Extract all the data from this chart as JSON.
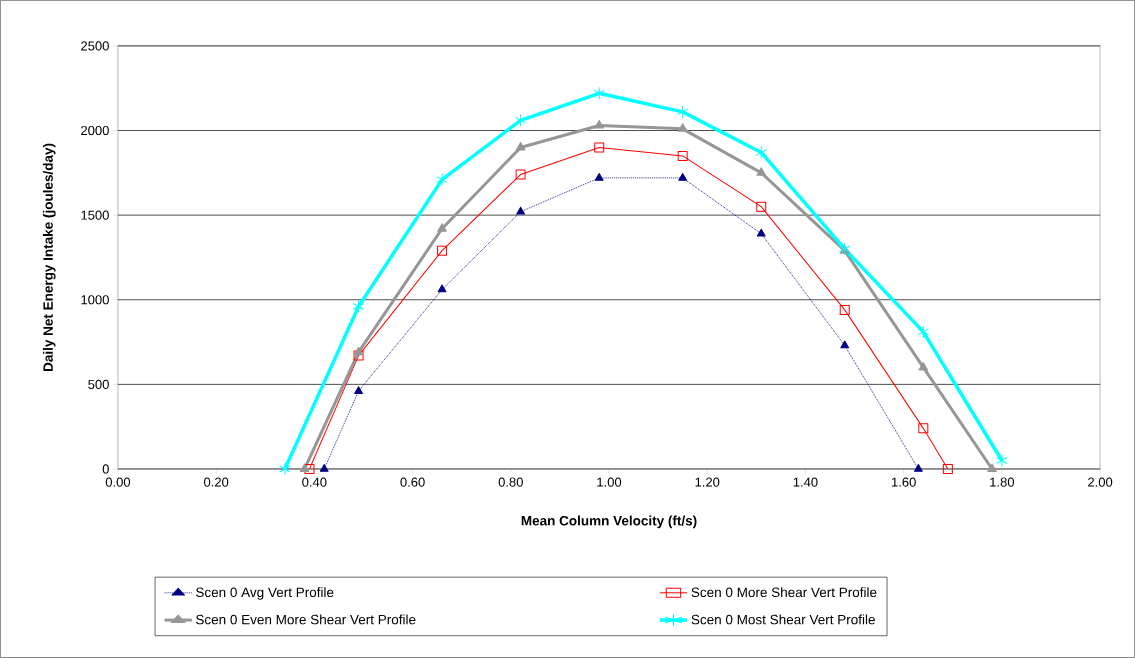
{
  "chart_data": {
    "type": "line",
    "xlabel": "Mean Column Velocity (ft/s)",
    "ylabel": "Daily Net Energy Intake (joules/day)",
    "xlim": [
      0,
      2
    ],
    "ylim": [
      0,
      2500
    ],
    "xticks": [
      {
        "value": 0,
        "label": "0.00"
      },
      {
        "value": 0.2,
        "label": "0.20"
      },
      {
        "value": 0.4,
        "label": "0.40"
      },
      {
        "value": 0.6,
        "label": "0.60"
      },
      {
        "value": 0.8,
        "label": "0.80"
      },
      {
        "value": 1,
        "label": "1.00"
      },
      {
        "value": 1.2,
        "label": "1.20"
      },
      {
        "value": 1.4,
        "label": "1.40"
      },
      {
        "value": 1.6,
        "label": "1.60"
      },
      {
        "value": 1.8,
        "label": "1.80"
      },
      {
        "value": 2,
        "label": "2.00"
      }
    ],
    "yticks": [
      0,
      500,
      1000,
      1500,
      2000,
      2500
    ],
    "grid": "y",
    "legend": "bottom",
    "series": [
      {
        "name": "Scen 0   Avg Vert Profile",
        "color": "#000080",
        "marker": "triangle",
        "line_style": "dotted",
        "x": [
          0.42,
          0.49,
          0.66,
          0.82,
          0.98,
          1.15,
          1.31,
          1.48,
          1.63
        ],
        "values": [
          0,
          460,
          1060,
          1520,
          1720,
          1720,
          1390,
          730,
          0
        ]
      },
      {
        "name": "Scen 0   More Shear Vert Profile",
        "color": "#ff0000",
        "marker": "square",
        "line_style": "solid",
        "x": [
          0.39,
          0.49,
          0.66,
          0.82,
          0.98,
          1.15,
          1.31,
          1.48,
          1.64,
          1.69
        ],
        "values": [
          0,
          670,
          1290,
          1740,
          1900,
          1850,
          1550,
          940,
          240,
          0
        ]
      },
      {
        "name": "Scen 0   Even More Shear Vert Profile",
        "color": "#969696",
        "marker": "triangle",
        "line_style": "solid",
        "x": [
          0.38,
          0.49,
          0.66,
          0.82,
          0.98,
          1.15,
          1.31,
          1.48,
          1.64,
          1.78
        ],
        "values": [
          0,
          690,
          1420,
          1900,
          2030,
          2010,
          1750,
          1290,
          600,
          0
        ]
      },
      {
        "name": "Scen 0   Most Shear Vert Profile",
        "color": "#00ffff",
        "marker": "cross",
        "line_style": "solid",
        "x": [
          0.34,
          0.49,
          0.66,
          0.82,
          0.98,
          1.15,
          1.31,
          1.48,
          1.64,
          1.8
        ],
        "values": [
          0,
          960,
          1710,
          2060,
          2220,
          2110,
          1870,
          1300,
          810,
          50
        ]
      }
    ]
  }
}
